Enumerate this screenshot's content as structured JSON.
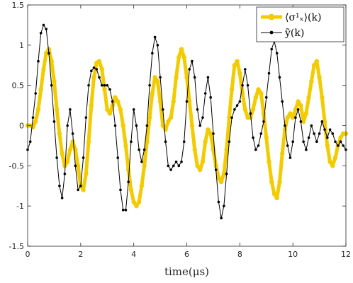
{
  "chart_data": {
    "type": "line",
    "title": "",
    "xlabel": "time(μs)",
    "ylabel": "",
    "xlim": [
      0,
      12
    ],
    "ylim": [
      -1.5,
      1.5
    ],
    "xticks": [
      0,
      2,
      4,
      6,
      8,
      10,
      12
    ],
    "yticks": [
      -1.5,
      -1,
      -0.5,
      0,
      0.5,
      1,
      1.5
    ],
    "xtick_labels": [
      "0",
      "2",
      "4",
      "6",
      "8",
      "10",
      "12"
    ],
    "ytick_labels": [
      "-1.5",
      "-1",
      "-0.5",
      "0",
      "0.5",
      "1",
      "1.5"
    ],
    "grid": false,
    "legend_position": "top-right",
    "series": [
      {
        "name": "⟨σ¹ₓ⟩(k)",
        "color": "#f2cc00",
        "x": [
          0,
          0.1,
          0.2,
          0.3,
          0.4,
          0.5,
          0.6,
          0.7,
          0.8,
          0.9,
          1.0,
          1.1,
          1.2,
          1.3,
          1.4,
          1.5,
          1.6,
          1.7,
          1.8,
          1.9,
          2.0,
          2.1,
          2.2,
          2.3,
          2.4,
          2.5,
          2.6,
          2.7,
          2.8,
          2.9,
          3.0,
          3.1,
          3.2,
          3.3,
          3.4,
          3.5,
          3.6,
          3.7,
          3.8,
          3.9,
          4.0,
          4.1,
          4.2,
          4.3,
          4.4,
          4.5,
          4.6,
          4.7,
          4.8,
          4.9,
          5.0,
          5.1,
          5.2,
          5.3,
          5.4,
          5.5,
          5.6,
          5.7,
          5.8,
          5.9,
          6.0,
          6.1,
          6.2,
          6.3,
          6.4,
          6.5,
          6.6,
          6.7,
          6.8,
          6.9,
          7.0,
          7.1,
          7.2,
          7.3,
          7.4,
          7.5,
          7.6,
          7.7,
          7.8,
          7.9,
          8.0,
          8.1,
          8.2,
          8.3,
          8.4,
          8.5,
          8.6,
          8.7,
          8.8,
          8.9,
          9.0,
          9.1,
          9.2,
          9.3,
          9.4,
          9.5,
          9.6,
          9.7,
          9.8,
          9.9,
          10.0,
          10.1,
          10.2,
          10.3,
          10.4,
          10.5,
          10.6,
          10.7,
          10.8,
          10.9,
          11.0,
          11.1,
          11.2,
          11.3,
          11.4,
          11.5,
          11.6,
          11.7,
          11.8,
          11.9,
          12.0
        ],
        "y": [
          0.0,
          0.0,
          -0.02,
          0.05,
          0.2,
          0.45,
          0.7,
          0.9,
          0.95,
          0.8,
          0.55,
          0.2,
          -0.1,
          -0.35,
          -0.5,
          -0.45,
          -0.3,
          -0.2,
          -0.3,
          -0.5,
          -0.75,
          -0.8,
          -0.6,
          -0.2,
          0.25,
          0.6,
          0.78,
          0.8,
          0.7,
          0.45,
          0.2,
          0.15,
          0.25,
          0.35,
          0.3,
          0.2,
          0.0,
          -0.25,
          -0.55,
          -0.8,
          -0.95,
          -1.0,
          -0.95,
          -0.75,
          -0.5,
          -0.2,
          0.1,
          0.4,
          0.6,
          0.55,
          0.3,
          0.0,
          -0.05,
          0.05,
          0.1,
          0.3,
          0.6,
          0.85,
          0.95,
          0.85,
          0.6,
          0.3,
          0.0,
          -0.3,
          -0.5,
          -0.55,
          -0.45,
          -0.2,
          -0.05,
          -0.1,
          -0.3,
          -0.5,
          -0.65,
          -0.7,
          -0.6,
          -0.3,
          0.1,
          0.45,
          0.75,
          0.8,
          0.65,
          0.4,
          0.2,
          0.1,
          0.1,
          0.2,
          0.35,
          0.45,
          0.4,
          0.15,
          -0.15,
          -0.45,
          -0.7,
          -0.85,
          -0.9,
          -0.7,
          -0.35,
          -0.05,
          0.1,
          0.15,
          0.1,
          0.2,
          0.3,
          0.25,
          0.05,
          0.15,
          0.35,
          0.55,
          0.75,
          0.8,
          0.6,
          0.35,
          0.05,
          -0.25,
          -0.45,
          -0.5,
          -0.4,
          -0.25,
          -0.15,
          -0.1,
          -0.1
        ]
      },
      {
        "name": "ỹ(k)",
        "color": "#000000",
        "x": [
          0,
          0.1,
          0.2,
          0.3,
          0.4,
          0.5,
          0.6,
          0.7,
          0.8,
          0.9,
          1.0,
          1.1,
          1.2,
          1.3,
          1.4,
          1.5,
          1.6,
          1.7,
          1.8,
          1.9,
          2.0,
          2.1,
          2.2,
          2.3,
          2.4,
          2.5,
          2.6,
          2.7,
          2.8,
          2.9,
          3.0,
          3.1,
          3.2,
          3.3,
          3.4,
          3.5,
          3.6,
          3.7,
          3.8,
          3.9,
          4.0,
          4.1,
          4.2,
          4.3,
          4.4,
          4.5,
          4.6,
          4.7,
          4.8,
          4.9,
          5.0,
          5.1,
          5.2,
          5.3,
          5.4,
          5.5,
          5.6,
          5.7,
          5.8,
          5.9,
          6.0,
          6.1,
          6.2,
          6.3,
          6.4,
          6.5,
          6.6,
          6.7,
          6.8,
          6.9,
          7.0,
          7.1,
          7.2,
          7.3,
          7.4,
          7.5,
          7.6,
          7.7,
          7.8,
          7.9,
          8.0,
          8.1,
          8.2,
          8.3,
          8.4,
          8.5,
          8.6,
          8.7,
          8.8,
          8.9,
          9.0,
          9.1,
          9.2,
          9.3,
          9.4,
          9.5,
          9.6,
          9.7,
          9.8,
          9.9,
          10.0,
          10.1,
          10.2,
          10.3,
          10.4,
          10.5,
          10.6,
          10.7,
          10.8,
          10.9,
          11.0,
          11.1,
          11.2,
          11.3,
          11.4,
          11.5,
          11.6,
          11.7,
          11.8,
          11.9,
          12.0
        ],
        "y": [
          -0.3,
          -0.2,
          0.1,
          0.4,
          0.8,
          1.15,
          1.25,
          1.2,
          0.9,
          0.5,
          0.05,
          -0.4,
          -0.75,
          -0.9,
          -0.6,
          0.0,
          0.2,
          -0.1,
          -0.5,
          -0.8,
          -0.75,
          -0.4,
          0.1,
          0.5,
          0.68,
          0.72,
          0.7,
          0.6,
          0.5,
          0.5,
          0.5,
          0.45,
          0.3,
          0.0,
          -0.4,
          -0.8,
          -1.05,
          -1.05,
          -0.7,
          -0.2,
          0.2,
          0.0,
          -0.3,
          -0.45,
          -0.3,
          0.0,
          0.5,
          0.9,
          1.1,
          1.0,
          0.6,
          0.2,
          -0.2,
          -0.5,
          -0.55,
          -0.5,
          -0.45,
          -0.5,
          -0.45,
          -0.2,
          0.3,
          0.7,
          0.8,
          0.6,
          0.2,
          0.0,
          0.1,
          0.4,
          0.6,
          0.35,
          -0.1,
          -0.55,
          -0.95,
          -1.15,
          -1.0,
          -0.6,
          -0.2,
          0.1,
          0.2,
          0.25,
          0.3,
          0.5,
          0.7,
          0.5,
          0.15,
          -0.15,
          -0.3,
          -0.25,
          -0.1,
          0.05,
          0.35,
          0.65,
          0.95,
          1.05,
          0.9,
          0.6,
          0.3,
          0.0,
          -0.25,
          -0.4,
          -0.2,
          0.1,
          0.2,
          0.05,
          -0.2,
          -0.3,
          -0.15,
          0.0,
          -0.1,
          -0.2,
          -0.1,
          0.05,
          -0.05,
          -0.15,
          -0.05,
          -0.1,
          -0.2,
          -0.25,
          -0.2,
          -0.25,
          -0.3
        ]
      }
    ]
  }
}
